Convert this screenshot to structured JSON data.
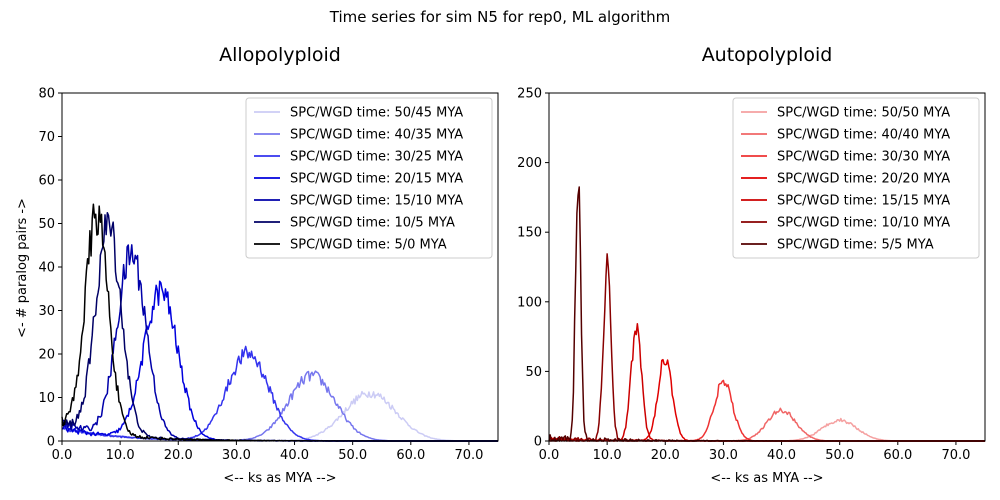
{
  "figure": {
    "suptitle": "Time series for sim N5 for rep0, ML algorithm"
  },
  "chart_data": [
    {
      "type": "line",
      "title": "Allopolyploid",
      "xlabel": "<-- ks as MYA -->",
      "ylabel": "<- # paralog pairs ->",
      "xlim": [
        0,
        75
      ],
      "ylim": [
        0,
        80
      ],
      "xticks": [
        0,
        10,
        20,
        30,
        40,
        50,
        60,
        70
      ],
      "xtick_labels": [
        "0.0",
        "10.0",
        "20.0",
        "30.0",
        "40.0",
        "50.0",
        "60.0",
        "70.0"
      ],
      "yticks": [
        0,
        10,
        20,
        30,
        40,
        50,
        60,
        70,
        80
      ],
      "ytick_labels": [
        "0",
        "10",
        "20",
        "30",
        "40",
        "50",
        "60",
        "70",
        "80"
      ],
      "grid": false,
      "legend_position": "top-right",
      "series": [
        {
          "name": "SPC/WGD time: 50/45 MYA",
          "color": "#ccccf5",
          "peak_x": 53,
          "peak_y": 11,
          "width": 4.5,
          "baseline": 3
        },
        {
          "name": "SPC/WGD time: 40/35 MYA",
          "color": "#7777ee",
          "peak_x": 43,
          "peak_y": 15,
          "width": 4.0,
          "baseline": 3
        },
        {
          "name": "SPC/WGD time: 30/25 MYA",
          "color": "#3333ee",
          "peak_x": 32,
          "peak_y": 20,
          "width": 3.6,
          "baseline": 3
        },
        {
          "name": "SPC/WGD time: 20/15 MYA",
          "color": "#0000dd",
          "peak_x": 17,
          "peak_y": 34,
          "width": 2.9,
          "baseline": 3
        },
        {
          "name": "SPC/WGD time: 15/10 MYA",
          "color": "#0000aa",
          "peak_x": 12,
          "peak_y": 42,
          "width": 2.5,
          "baseline": 4
        },
        {
          "name": "SPC/WGD time: 10/5 MYA",
          "color": "#000066",
          "peak_x": 8,
          "peak_y": 48,
          "width": 2.2,
          "baseline": 4
        },
        {
          "name": "SPC/WGD time: 5/0 MYA",
          "color": "#000000",
          "peak_x": 6,
          "peak_y": 50,
          "width": 2.0,
          "baseline": 4
        }
      ]
    },
    {
      "type": "line",
      "title": "Autopolyploid",
      "xlabel": "<-- ks as MYA -->",
      "ylabel": "",
      "xlim": [
        0,
        75
      ],
      "ylim": [
        0,
        250
      ],
      "xticks": [
        0,
        10,
        20,
        30,
        40,
        50,
        60,
        70
      ],
      "xtick_labels": [
        "0.0",
        "10.0",
        "20.0",
        "30.0",
        "40.0",
        "50.0",
        "60.0",
        "70.0"
      ],
      "yticks": [
        0,
        50,
        100,
        150,
        200,
        250
      ],
      "ytick_labels": [
        "0",
        "50",
        "100",
        "150",
        "200",
        "250"
      ],
      "grid": false,
      "legend_position": "top-right",
      "series": [
        {
          "name": "SPC/WGD time: 50/50 MYA",
          "color": "#f5a0a0",
          "peak_x": 50,
          "peak_y": 15,
          "width": 3.0,
          "baseline": 1
        },
        {
          "name": "SPC/WGD time: 40/40 MYA",
          "color": "#f06666",
          "peak_x": 40,
          "peak_y": 22,
          "width": 2.5,
          "baseline": 1
        },
        {
          "name": "SPC/WGD time: 30/30 MYA",
          "color": "#ee3333",
          "peak_x": 30,
          "peak_y": 42,
          "width": 1.6,
          "baseline": 1
        },
        {
          "name": "SPC/WGD time: 20/20 MYA",
          "color": "#e00000",
          "peak_x": 20,
          "peak_y": 60,
          "width": 1.2,
          "baseline": 1
        },
        {
          "name": "SPC/WGD time: 15/15 MYA",
          "color": "#cc0000",
          "peak_x": 15,
          "peak_y": 80,
          "width": 0.9,
          "baseline": 1
        },
        {
          "name": "SPC/WGD time: 10/10 MYA",
          "color": "#880000",
          "peak_x": 10,
          "peak_y": 125,
          "width": 0.65,
          "baseline": 1
        },
        {
          "name": "SPC/WGD time: 5/5 MYA",
          "color": "#550000",
          "peak_x": 5,
          "peak_y": 187,
          "width": 0.45,
          "baseline": 1
        }
      ]
    }
  ]
}
